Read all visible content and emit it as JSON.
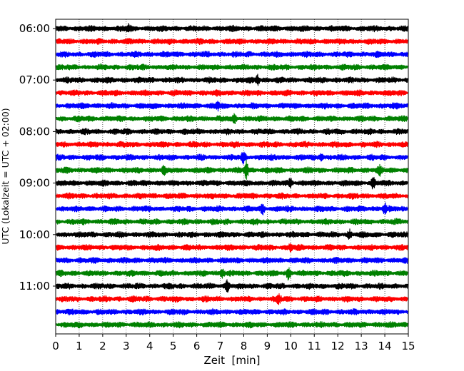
{
  "chart_data": {
    "type": "line",
    "title": "",
    "xlabel": "Zeit  [min]",
    "ylabel": "UTC (Lokalzeit = UTC + 02:00)",
    "xlim": [
      0,
      15
    ],
    "x_ticks": [
      "0",
      "1",
      "2",
      "3",
      "4",
      "5",
      "6",
      "7",
      "8",
      "9",
      "10",
      "11",
      "12",
      "13",
      "14",
      "15"
    ],
    "y_ticks": [
      "06:00",
      "07:00",
      "08:00",
      "09:00",
      "10:00",
      "11:00"
    ],
    "grid": "vertical dotted",
    "colors": [
      "#000000",
      "#ff0000",
      "#0000ff",
      "#008000"
    ],
    "traces": [
      {
        "start": "06:00",
        "color": "#000000",
        "events": [
          [
            3.1,
            0.6
          ]
        ]
      },
      {
        "start": "06:15",
        "color": "#ff0000",
        "events": []
      },
      {
        "start": "06:30",
        "color": "#0000ff",
        "events": []
      },
      {
        "start": "06:45",
        "color": "#008000",
        "events": []
      },
      {
        "start": "07:00",
        "color": "#000000",
        "events": [
          [
            8.6,
            0.7
          ]
        ]
      },
      {
        "start": "07:15",
        "color": "#ff0000",
        "events": []
      },
      {
        "start": "07:30",
        "color": "#0000ff",
        "events": [
          [
            6.9,
            0.6
          ]
        ]
      },
      {
        "start": "07:45",
        "color": "#008000",
        "events": [
          [
            7.6,
            0.6
          ]
        ]
      },
      {
        "start": "08:00",
        "color": "#000000",
        "events": []
      },
      {
        "start": "08:15",
        "color": "#ff0000",
        "events": []
      },
      {
        "start": "08:30",
        "color": "#0000ff",
        "events": [
          [
            8.0,
            0.9
          ],
          [
            11.3,
            0.7
          ]
        ]
      },
      {
        "start": "08:45",
        "color": "#008000",
        "events": [
          [
            4.6,
            0.6
          ],
          [
            8.1,
            1.6
          ],
          [
            13.8,
            0.6
          ]
        ]
      },
      {
        "start": "09:00",
        "color": "#000000",
        "events": [
          [
            10.0,
            0.6
          ],
          [
            13.5,
            0.8
          ]
        ]
      },
      {
        "start": "09:15",
        "color": "#ff0000",
        "events": []
      },
      {
        "start": "09:30",
        "color": "#0000ff",
        "events": [
          [
            8.8,
            0.7
          ],
          [
            14.0,
            0.8
          ]
        ]
      },
      {
        "start": "09:45",
        "color": "#008000",
        "events": []
      },
      {
        "start": "10:00",
        "color": "#000000",
        "events": [
          [
            12.5,
            0.6
          ]
        ]
      },
      {
        "start": "10:15",
        "color": "#ff0000",
        "events": [
          [
            10.0,
            0.6
          ]
        ]
      },
      {
        "start": "10:30",
        "color": "#0000ff",
        "events": []
      },
      {
        "start": "10:45",
        "color": "#008000",
        "events": [
          [
            7.1,
            0.6
          ],
          [
            9.9,
            0.9
          ]
        ]
      },
      {
        "start": "11:00",
        "color": "#000000",
        "events": [
          [
            7.3,
            1.2
          ]
        ]
      },
      {
        "start": "11:15",
        "color": "#ff0000",
        "events": [
          [
            9.5,
            0.6
          ]
        ]
      },
      {
        "start": "11:30",
        "color": "#0000ff",
        "events": []
      },
      {
        "start": "11:45",
        "color": "#008000",
        "events": []
      }
    ]
  }
}
